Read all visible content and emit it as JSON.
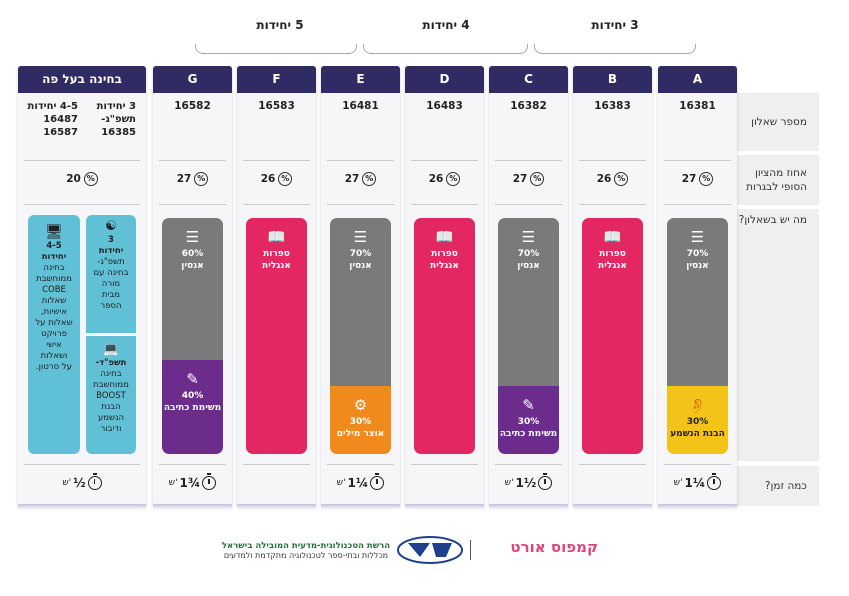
{
  "units": [
    {
      "label": "5 יחידות"
    },
    {
      "label": "4 יחידות"
    },
    {
      "label": "3 יחידות"
    }
  ],
  "row_labels": {
    "code": "מספר שאלון",
    "percent": "אחוז מהציון הסופי לבגרות",
    "content": "מה יש בשאלון?",
    "time": "כמה זמן?"
  },
  "columns": [
    {
      "letter": "A",
      "code": "16381",
      "percent": "27",
      "time": "1¼",
      "unit": "ש'",
      "segments": [
        {
          "kind": "grey",
          "icon": "document-icon",
          "text1": "70%",
          "text2": "אנסין",
          "color": "#7a7a7a",
          "frac": 0.71
        },
        {
          "kind": "yellow",
          "icon": "ear-icon",
          "text1": "30%",
          "text2": "הבנת הנשמע",
          "color": "#f3c319",
          "frac": 0.29
        }
      ]
    },
    {
      "letter": "B",
      "code": "16383",
      "percent": "26",
      "time": "",
      "unit": "",
      "segments": [
        {
          "kind": "pink",
          "icon": "book-icon",
          "text1": "ספרות",
          "text2": "אנגלית",
          "color": "#e32762",
          "frac": 1
        }
      ]
    },
    {
      "letter": "C",
      "code": "16382",
      "percent": "27",
      "time": "1½",
      "unit": "ש'",
      "segments": [
        {
          "kind": "grey",
          "icon": "document-icon",
          "text1": "70%",
          "text2": "אנסין",
          "color": "#7a7a7a",
          "frac": 0.71
        },
        {
          "kind": "purple",
          "icon": "pen-icon",
          "text1": "30%",
          "text2": "משימת כתיבה",
          "color": "#6b2c8c",
          "frac": 0.29
        }
      ]
    },
    {
      "letter": "D",
      "code": "16483",
      "percent": "26",
      "time": "",
      "unit": "",
      "segments": [
        {
          "kind": "pink",
          "icon": "book-icon",
          "text1": "ספרות",
          "text2": "אנגלית",
          "color": "#e32762",
          "frac": 1
        }
      ]
    },
    {
      "letter": "E",
      "code": "16481",
      "percent": "27",
      "time": "1¼",
      "unit": "ש'",
      "segments": [
        {
          "kind": "grey",
          "icon": "document-icon",
          "text1": "70%",
          "text2": "אנסין",
          "color": "#7a7a7a",
          "frac": 0.71
        },
        {
          "kind": "orange",
          "icon": "vocabulary-icon",
          "text1": "30%",
          "text2": "אוצר מילים",
          "color": "#f08a1c",
          "frac": 0.29
        }
      ]
    },
    {
      "letter": "F",
      "code": "16583",
      "percent": "26",
      "time": "",
      "unit": "",
      "segments": [
        {
          "kind": "pink",
          "icon": "book-icon",
          "text1": "ספרות",
          "text2": "אנגלית",
          "color": "#e32762",
          "frac": 1
        }
      ]
    },
    {
      "letter": "G",
      "code": "16582",
      "percent": "27",
      "time": "1¾",
      "unit": "ש'",
      "segments": [
        {
          "kind": "grey",
          "icon": "document-icon",
          "text1": "60%",
          "text2": "אנסין",
          "color": "#7a7a7a",
          "frac": 0.6
        },
        {
          "kind": "purple",
          "icon": "pen-icon",
          "text1": "40%",
          "text2": "משימת כתיבה",
          "color": "#6b2c8c",
          "frac": 0.4
        }
      ]
    }
  ],
  "oral": {
    "title": "בחינה בעל פה",
    "codes_right": [
      "3 יחידות",
      "תשפ\"ג-",
      "16385"
    ],
    "codes_left": [
      "4-5 יחידות",
      "16487",
      "16587"
    ],
    "percent": "20",
    "time": "½",
    "unit": "ש'",
    "card_right_top": [
      "3",
      "יחידות",
      "תשפ\"ג-",
      "בחינה עם",
      "מורה",
      "מבית",
      "הספר"
    ],
    "card_right_bottom": [
      "תשפ\"ד-",
      "בחינה",
      "ממוחשבת",
      "BOOST",
      "הבנת",
      "הנשמע",
      "ודיבור"
    ],
    "card_left": [
      "4-5",
      "יחידות",
      "בחינה",
      "ממוחשבת",
      "COBE",
      "שאלות",
      "אישיות,",
      "שאלות על",
      "פרויקט",
      "אישי",
      "ושאלות",
      "על סרטון."
    ]
  },
  "footer": {
    "ministry_line1": "הרשת הטכנולוגית-מדעית המובילה בישראל",
    "ministry_line2": "מכללות ובתי-ספר לטכנולוגיה מתקדמת ולמדעים",
    "logo_ort": "אורט",
    "logo_campus": "קמפוס אורט"
  }
}
